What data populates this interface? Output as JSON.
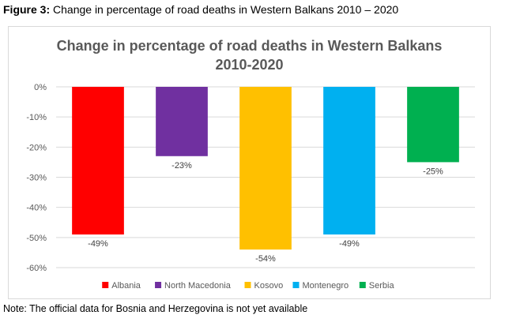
{
  "caption": {
    "label": "Figure 3:",
    "text": "Change in percentage of road deaths in Western Balkans 2010 – 2020"
  },
  "note": "Note: The official data for Bosnia and Herzegovina is not yet available",
  "chart_data": {
    "type": "bar",
    "title_lines": [
      "Change in percentage of road deaths in Western Balkans",
      "2010-2020"
    ],
    "categories": [
      "Albania",
      "North Macedonia",
      "Kosovo",
      "Montenegro",
      "Serbia"
    ],
    "values": [
      -49,
      -23,
      -54,
      -49,
      -25
    ],
    "data_labels": [
      "-49%",
      "-23%",
      "-54%",
      "-49%",
      "-25%"
    ],
    "colors": [
      "#ff0000",
      "#7030a0",
      "#ffc000",
      "#00b0f0",
      "#00b050"
    ],
    "yticks": [
      "0%",
      "-10%",
      "-20%",
      "-30%",
      "-40%",
      "-50%",
      "-60%"
    ],
    "ytick_values": [
      0,
      -10,
      -20,
      -30,
      -40,
      -50,
      -60
    ],
    "ylim": [
      -60,
      0
    ],
    "grid": true,
    "legend_position": "bottom"
  }
}
